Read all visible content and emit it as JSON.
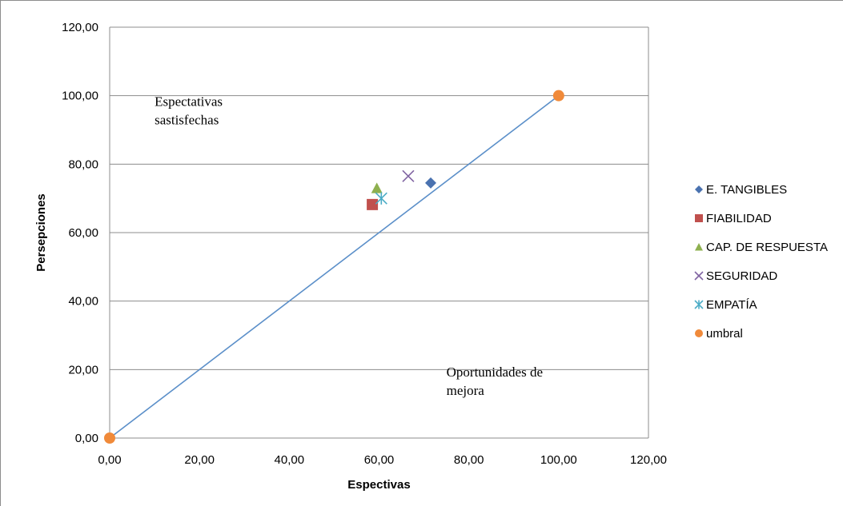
{
  "chart_data": {
    "type": "scatter",
    "xlabel": "Espectivas",
    "ylabel": "Persepciones",
    "xlim": [
      0,
      120
    ],
    "ylim": [
      0,
      120
    ],
    "x_ticks": [
      "0,00",
      "20,00",
      "40,00",
      "60,00",
      "80,00",
      "100,00",
      "120,00"
    ],
    "y_ticks": [
      "0,00",
      "20,00",
      "40,00",
      "60,00",
      "80,00",
      "100,00",
      "120,00"
    ],
    "grid": "horizontal",
    "legend_position": "right",
    "series": [
      {
        "name": "E. TANGIBLES",
        "marker": "diamond",
        "color": "#4a72b0",
        "points": [
          [
            71.5,
            74.5
          ]
        ]
      },
      {
        "name": "FIABILIDAD",
        "marker": "square",
        "color": "#c0504d",
        "points": [
          [
            58.5,
            68.2
          ]
        ]
      },
      {
        "name": "CAP. DE RESPUESTA",
        "marker": "triangle",
        "color": "#8eb04f",
        "points": [
          [
            59.5,
            73.0
          ]
        ]
      },
      {
        "name": "SEGURIDAD",
        "marker": "x",
        "color": "#8064a2",
        "points": [
          [
            66.5,
            76.5
          ]
        ]
      },
      {
        "name": "EMPATÍA",
        "marker": "asterisk",
        "color": "#4bacc6",
        "points": [
          [
            60.5,
            70.0
          ]
        ]
      },
      {
        "name": "umbral",
        "marker": "circle",
        "color": "#f08a3a",
        "points": [
          [
            0,
            0
          ],
          [
            100,
            100
          ]
        ]
      }
    ],
    "reference_line": {
      "from": [
        0,
        0
      ],
      "to": [
        100,
        100
      ],
      "color": "#5b8fc9"
    },
    "annotations": [
      {
        "lines": [
          "Espectativas",
          "sastisfechas"
        ],
        "x": 10,
        "y": 97
      },
      {
        "lines": [
          "Oportunidades de",
          "mejora"
        ],
        "x": 75,
        "y": 18
      }
    ]
  }
}
